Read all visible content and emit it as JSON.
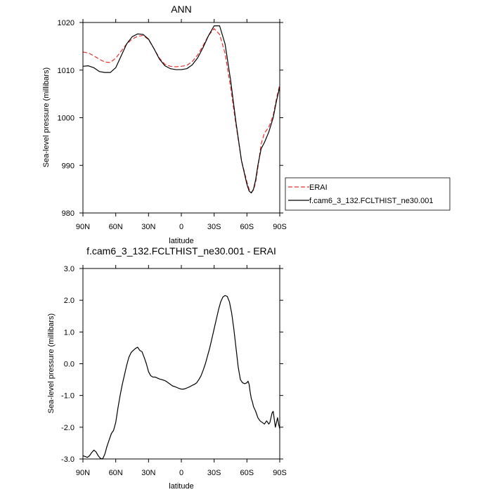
{
  "chart_data": [
    {
      "type": "line",
      "title": "ANN",
      "xlabel": "latitude",
      "ylabel": "Sea-level pressure (millibars)",
      "xlim": [
        90,
        -90
      ],
      "ylim": [
        980,
        1020
      ],
      "xticks": [
        90,
        60,
        30,
        0,
        -30,
        -60,
        -90
      ],
      "xtick_labels": [
        "90N",
        "60N",
        "30N",
        "0",
        "30S",
        "60S",
        "90S"
      ],
      "yticks": [
        980,
        990,
        1000,
        1010,
        1020
      ],
      "ytick_labels": [
        "980",
        "990",
        "1000",
        "1010",
        "1020"
      ],
      "legend_position": "right",
      "series": [
        {
          "name": "ERAI",
          "color": "#e8302a",
          "dash": "dashed",
          "x": [
            90,
            85,
            80,
            75,
            70,
            65,
            60,
            55,
            50,
            45,
            40,
            35,
            30,
            25,
            20,
            15,
            10,
            5,
            0,
            -5,
            -10,
            -15,
            -20,
            -25,
            -30,
            -35,
            -40,
            -45,
            -50,
            -55,
            -60,
            -62,
            -64,
            -66,
            -68,
            -70,
            -73,
            -76,
            -80,
            -84,
            -87,
            -90
          ],
          "y": [
            1013.8,
            1013.6,
            1013.0,
            1012.3,
            1011.7,
            1011.6,
            1012.5,
            1014.0,
            1015.5,
            1016.5,
            1017.1,
            1017.3,
            1016.4,
            1014.5,
            1012.5,
            1011.2,
            1010.8,
            1010.7,
            1010.8,
            1011.0,
            1011.8,
            1013.2,
            1015.2,
            1017.3,
            1018.7,
            1017.5,
            1013.5,
            1006.5,
            998.5,
            991.0,
            986.5,
            985.0,
            984.3,
            984.8,
            986.5,
            989.5,
            994.5,
            996.8,
            998.0,
            1000.5,
            1004.0,
            1007.0
          ]
        },
        {
          "name": "f.cam6_3_132.FCLTHIST_ne30.001",
          "color": "#000000",
          "dash": "solid",
          "x": [
            90,
            85,
            80,
            75,
            70,
            65,
            60,
            55,
            50,
            45,
            40,
            35,
            30,
            25,
            20,
            15,
            10,
            5,
            0,
            -5,
            -10,
            -15,
            -20,
            -25,
            -30,
            -35,
            -40,
            -45,
            -50,
            -55,
            -60,
            -62,
            -64,
            -66,
            -68,
            -70,
            -73,
            -76,
            -80,
            -84,
            -87,
            -90
          ],
          "y": [
            1010.8,
            1010.9,
            1010.5,
            1009.7,
            1009.5,
            1009.5,
            1010.5,
            1013.0,
            1015.5,
            1017.0,
            1017.6,
            1017.5,
            1016.5,
            1014.5,
            1012.3,
            1010.9,
            1010.3,
            1010.1,
            1010.1,
            1010.3,
            1011.1,
            1012.6,
            1014.8,
            1017.3,
            1019.3,
            1019.3,
            1015.5,
            1008.0,
            999.0,
            991.0,
            986.0,
            984.6,
            984.2,
            985.0,
            987.0,
            990.0,
            993.5,
            994.8,
            997.0,
            1000.0,
            1003.5,
            1006.5
          ]
        }
      ]
    },
    {
      "type": "line",
      "title": "f.cam6_3_132.FCLTHIST_ne30.001 - ERAI",
      "xlabel": "latitude",
      "ylabel": "Sea-level pressure (millibars)",
      "xlim": [
        90,
        -90
      ],
      "ylim": [
        -3.0,
        3.0
      ],
      "xticks": [
        90,
        60,
        30,
        0,
        -30,
        -60,
        -90
      ],
      "xtick_labels": [
        "90N",
        "60N",
        "30N",
        "0",
        "30S",
        "60S",
        "90S"
      ],
      "yticks": [
        -3.0,
        -2.0,
        -1.0,
        0.0,
        1.0,
        2.0,
        3.0
      ],
      "ytick_labels": [
        "-3.0",
        "-2.0",
        "-1.0",
        "0.0",
        "1.0",
        "2.0",
        "3.0"
      ],
      "series": [
        {
          "color": "#000000",
          "dash": "solid",
          "x": [
            90,
            88,
            86,
            84,
            82,
            80,
            78,
            76,
            74,
            72,
            70,
            68,
            66,
            64,
            62,
            60,
            58,
            56,
            54,
            52,
            50,
            48,
            46,
            44,
            42,
            40,
            38,
            36,
            34,
            32,
            30,
            28,
            26,
            24,
            22,
            20,
            18,
            16,
            14,
            12,
            10,
            8,
            6,
            4,
            2,
            0,
            -2,
            -4,
            -6,
            -8,
            -10,
            -12,
            -14,
            -16,
            -18,
            -20,
            -22,
            -24,
            -26,
            -28,
            -30,
            -32,
            -34,
            -36,
            -38,
            -40,
            -42,
            -44,
            -46,
            -48,
            -50,
            -52,
            -54,
            -56,
            -58,
            -60,
            -61,
            -62,
            -63,
            -64,
            -65,
            -66,
            -68,
            -70,
            -72,
            -74,
            -76,
            -78,
            -80,
            -81,
            -82,
            -83,
            -84,
            -85,
            -86,
            -87,
            -88,
            -89,
            -90
          ],
          "y": [
            -2.9,
            -2.92,
            -2.95,
            -2.9,
            -2.8,
            -2.72,
            -2.78,
            -2.9,
            -2.98,
            -3.0,
            -2.85,
            -2.6,
            -2.4,
            -2.2,
            -2.1,
            -1.85,
            -1.4,
            -1.0,
            -0.65,
            -0.35,
            -0.05,
            0.2,
            0.35,
            0.42,
            0.48,
            0.52,
            0.42,
            0.38,
            0.2,
            0.0,
            -0.25,
            -0.38,
            -0.42,
            -0.42,
            -0.45,
            -0.48,
            -0.5,
            -0.52,
            -0.55,
            -0.6,
            -0.65,
            -0.7,
            -0.72,
            -0.75,
            -0.78,
            -0.8,
            -0.8,
            -0.78,
            -0.75,
            -0.72,
            -0.68,
            -0.65,
            -0.6,
            -0.5,
            -0.38,
            -0.2,
            0.0,
            0.25,
            0.5,
            0.8,
            1.1,
            1.4,
            1.7,
            1.95,
            2.1,
            2.15,
            2.12,
            1.95,
            1.6,
            1.1,
            0.5,
            -0.1,
            -0.5,
            -0.6,
            -0.63,
            -0.6,
            -0.55,
            -0.65,
            -0.9,
            -1.1,
            -1.2,
            -1.35,
            -1.5,
            -1.7,
            -1.8,
            -1.85,
            -1.9,
            -1.8,
            -1.9,
            -1.85,
            -1.7,
            -1.55,
            -1.5,
            -1.75,
            -2.0,
            -1.85,
            -1.7,
            -1.9,
            -2.05
          ]
        }
      ]
    }
  ]
}
